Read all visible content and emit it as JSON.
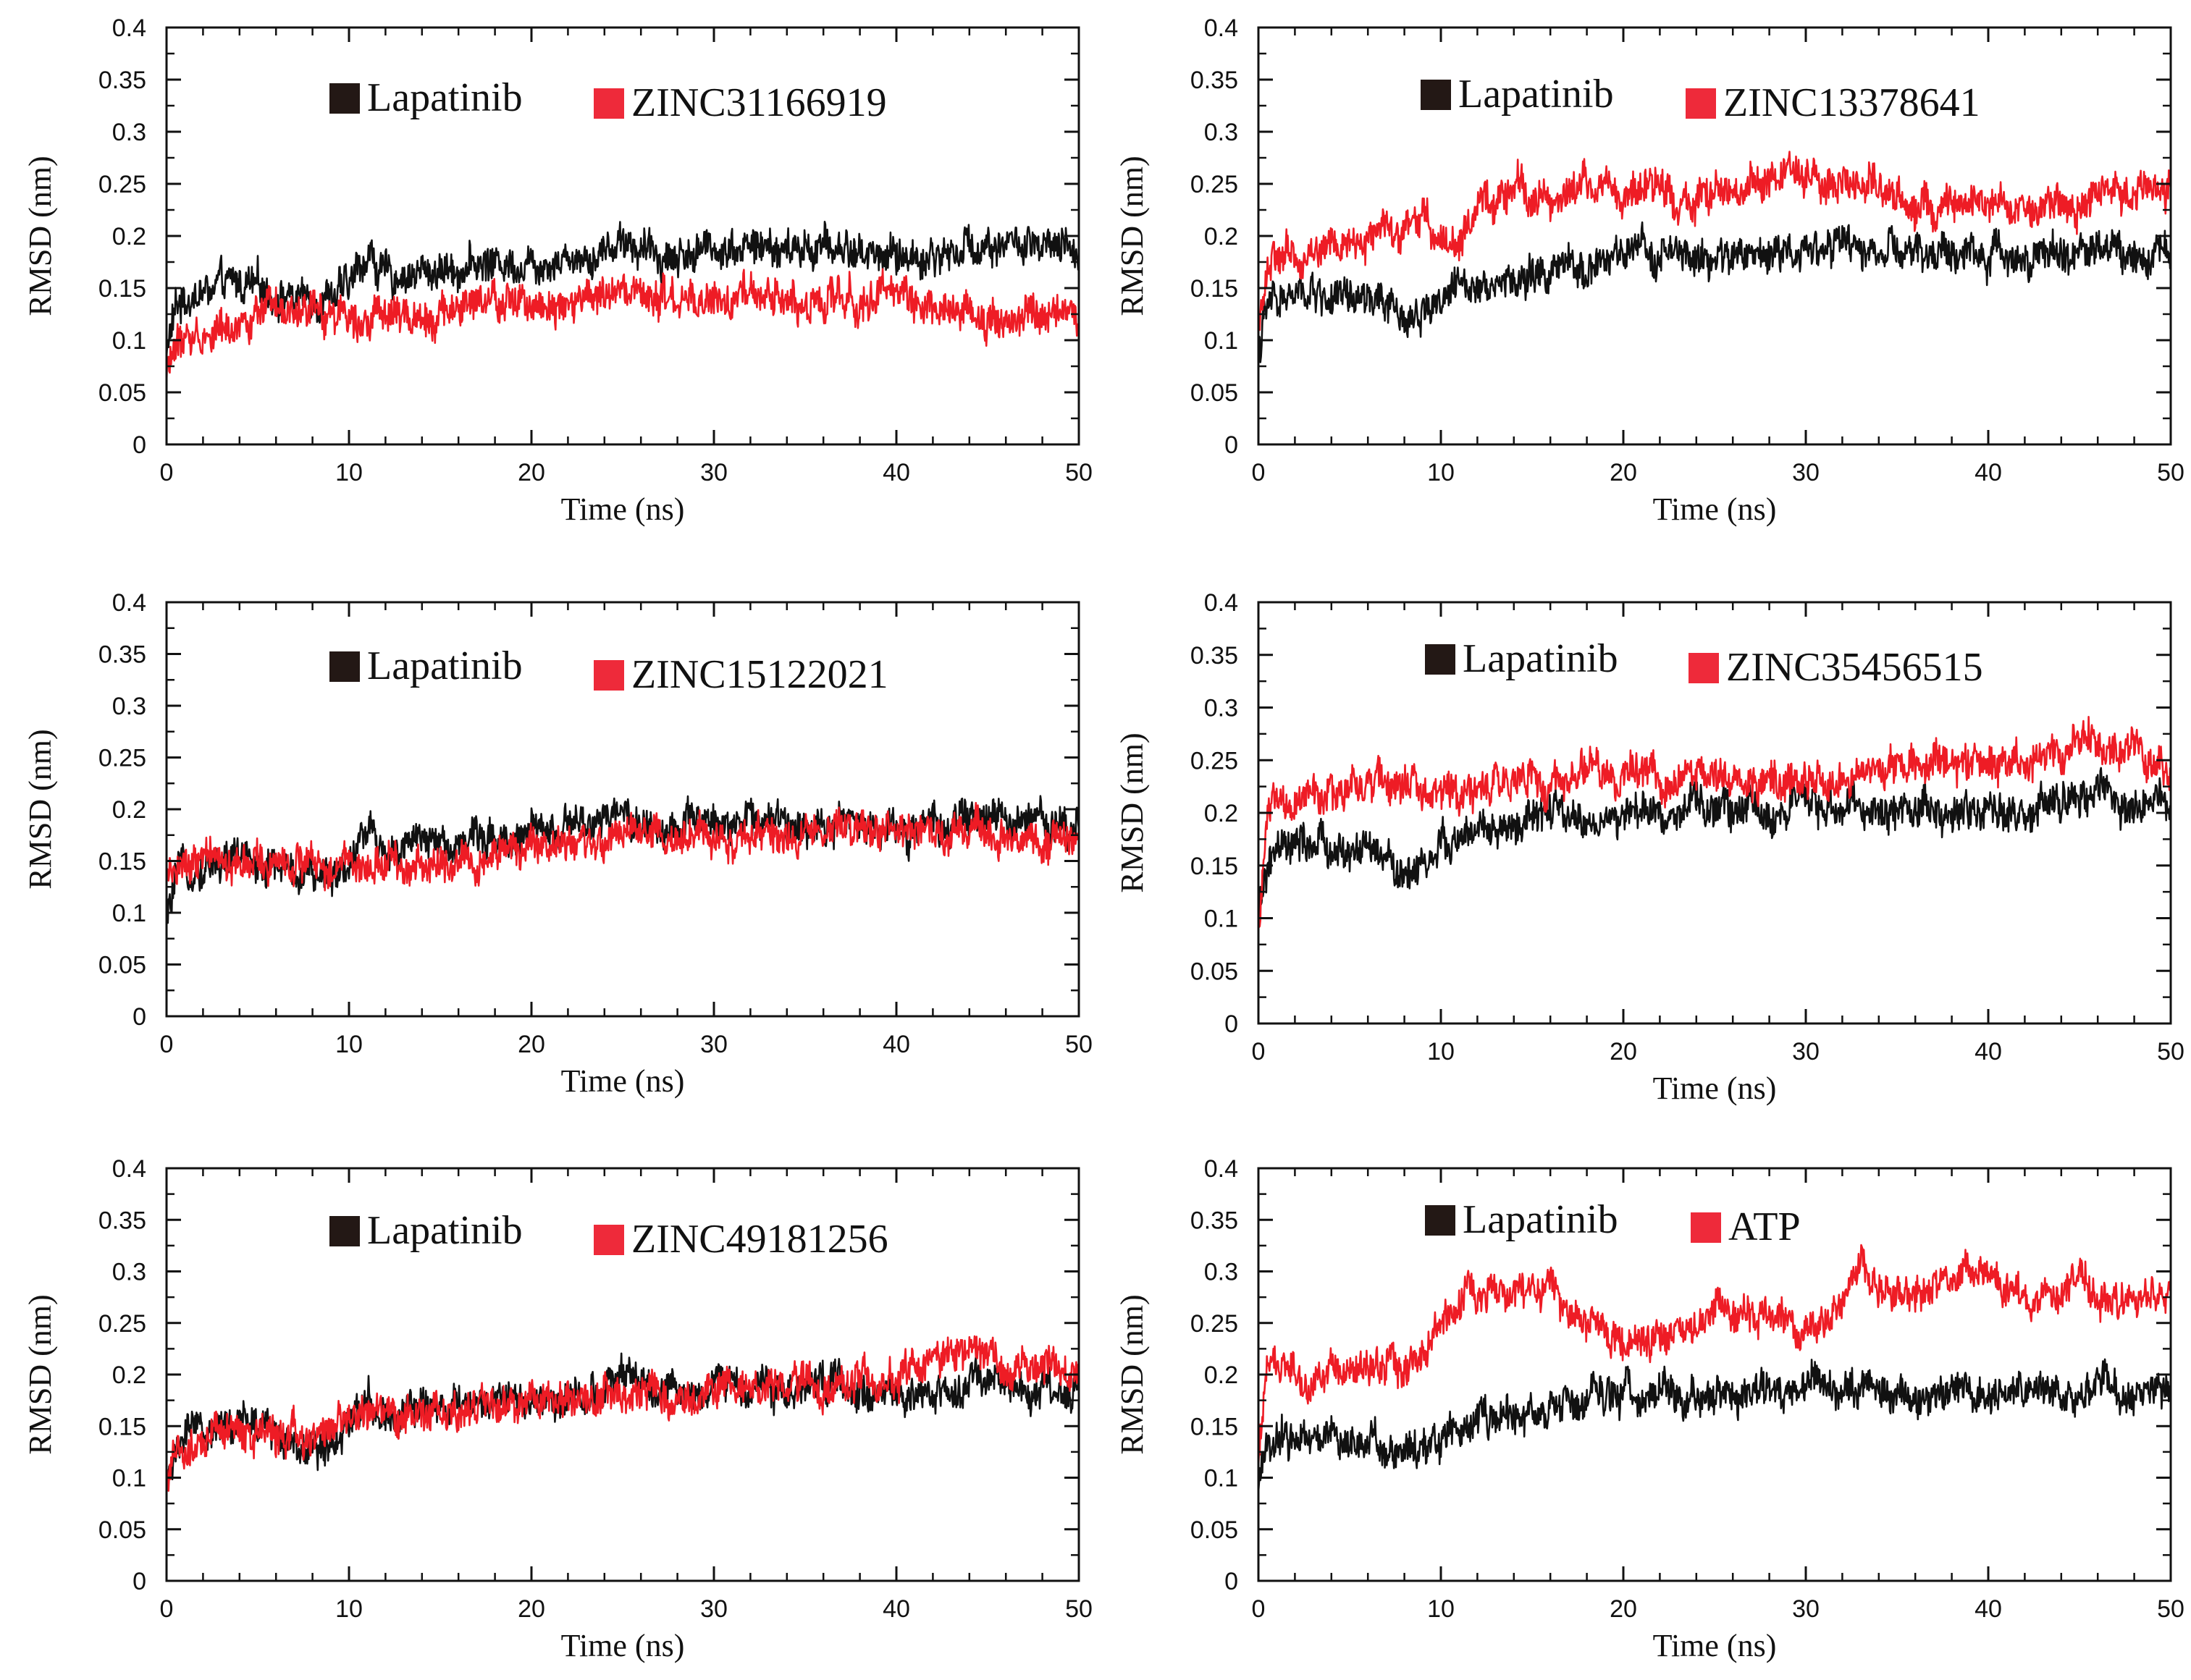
{
  "colors": {
    "reference": "#111111",
    "compound": "#ee1c25",
    "legend_reference_box": "#231815",
    "legend_compound_box": "#ee2a3a"
  },
  "chart_data": [
    {
      "type": "line",
      "title": "",
      "xlabel": "Time (ns)",
      "ylabel": "RMSD (nm)",
      "xlim": [
        0,
        50
      ],
      "ylim": [
        0,
        0.4
      ],
      "xticks": [
        "0",
        "10",
        "20",
        "30",
        "40",
        "50"
      ],
      "yticks": [
        "0",
        "0.05",
        "0.1",
        "0.15",
        "0.2",
        "0.25",
        "0.3",
        "0.35",
        "0.4"
      ],
      "legend": [
        "Lapatinib",
        "ZINC31166919"
      ],
      "series": [
        {
          "name": "Lapatinib",
          "x": [
            0,
            0.5,
            1,
            2,
            3,
            4,
            5,
            6,
            7,
            8,
            9,
            10,
            11,
            12,
            14,
            16,
            18,
            20,
            22,
            24,
            25,
            26,
            28,
            30,
            32,
            34,
            36,
            38,
            40,
            42,
            44,
            46,
            48,
            50
          ],
          "y": [
            0.09,
            0.13,
            0.14,
            0.145,
            0.15,
            0.155,
            0.15,
            0.145,
            0.14,
            0.14,
            0.145,
            0.15,
            0.185,
            0.16,
            0.165,
            0.17,
            0.175,
            0.175,
            0.18,
            0.185,
            0.2,
            0.185,
            0.18,
            0.19,
            0.19,
            0.185,
            0.19,
            0.185,
            0.18,
            0.18,
            0.19,
            0.195,
            0.185,
            0.185
          ]
        },
        {
          "name": "ZINC31166919",
          "x": [
            0,
            0.5,
            1,
            2,
            3,
            4,
            5,
            6,
            7,
            8,
            9,
            10,
            11,
            12,
            14,
            16,
            18,
            20,
            22,
            24,
            26,
            28,
            30,
            32,
            34,
            36,
            38,
            40,
            42,
            44,
            46,
            48,
            50
          ],
          "y": [
            0.07,
            0.095,
            0.1,
            0.105,
            0.11,
            0.12,
            0.125,
            0.125,
            0.12,
            0.125,
            0.125,
            0.13,
            0.125,
            0.12,
            0.125,
            0.13,
            0.135,
            0.135,
            0.14,
            0.14,
            0.14,
            0.135,
            0.135,
            0.14,
            0.14,
            0.135,
            0.14,
            0.145,
            0.135,
            0.125,
            0.12,
            0.12,
            0.125
          ]
        }
      ]
    },
    {
      "type": "line",
      "title": "",
      "xlabel": "Time (ns)",
      "ylabel": "RMSD (nm)",
      "xlim": [
        0,
        50
      ],
      "ylim": [
        0,
        0.4
      ],
      "xticks": [
        "0",
        "10",
        "20",
        "30",
        "40",
        "50"
      ],
      "yticks": [
        "0",
        "0.05",
        "0.1",
        "0.15",
        "0.2",
        "0.25",
        "0.3",
        "0.35",
        "0.4"
      ],
      "legend": [
        "Lapatinib",
        "ZINC13378641"
      ],
      "series": [
        {
          "name": "Lapatinib",
          "x": [
            0,
            0.5,
            1,
            2,
            3,
            4,
            5,
            6,
            7,
            8,
            9,
            10,
            11,
            12,
            14,
            16,
            18,
            20,
            22,
            24,
            26,
            28,
            30,
            32,
            34,
            36,
            38,
            40,
            42,
            44,
            46,
            48,
            50
          ],
          "y": [
            0.09,
            0.13,
            0.14,
            0.14,
            0.145,
            0.14,
            0.135,
            0.14,
            0.13,
            0.12,
            0.13,
            0.14,
            0.15,
            0.16,
            0.155,
            0.165,
            0.17,
            0.18,
            0.185,
            0.175,
            0.18,
            0.185,
            0.19,
            0.19,
            0.185,
            0.18,
            0.185,
            0.18,
            0.185,
            0.18,
            0.19,
            0.185,
            0.185
          ]
        },
        {
          "name": "ZINC13378641",
          "x": [
            0,
            0.5,
            1,
            2,
            3,
            4,
            5,
            6,
            7,
            8,
            9,
            10,
            11,
            12,
            13,
            14,
            16,
            18,
            20,
            22,
            24,
            26,
            28,
            29,
            30,
            32,
            34,
            36,
            38,
            40,
            42,
            44,
            46,
            48,
            50
          ],
          "y": [
            0.12,
            0.17,
            0.175,
            0.18,
            0.185,
            0.19,
            0.19,
            0.2,
            0.205,
            0.21,
            0.215,
            0.2,
            0.195,
            0.22,
            0.235,
            0.245,
            0.235,
            0.25,
            0.24,
            0.245,
            0.235,
            0.24,
            0.255,
            0.265,
            0.25,
            0.245,
            0.255,
            0.225,
            0.22,
            0.23,
            0.225,
            0.23,
            0.235,
            0.245,
            0.25
          ]
        }
      ]
    },
    {
      "type": "line",
      "title": "",
      "xlabel": "Time (ns)",
      "ylabel": "RMSD (nm)",
      "xlim": [
        0,
        50
      ],
      "ylim": [
        0,
        0.4
      ],
      "xticks": [
        "0",
        "10",
        "20",
        "30",
        "40",
        "50"
      ],
      "yticks": [
        "0",
        "0.05",
        "0.1",
        "0.15",
        "0.2",
        "0.25",
        "0.3",
        "0.35",
        "0.4"
      ],
      "legend": [
        "Lapatinib",
        "ZINC15122021"
      ],
      "series": [
        {
          "name": "Lapatinib",
          "x": [
            0,
            0.5,
            1,
            2,
            3,
            4,
            5,
            6,
            7,
            8,
            9,
            10,
            11,
            12,
            14,
            16,
            18,
            20,
            22,
            24,
            25,
            26,
            28,
            30,
            32,
            34,
            36,
            38,
            40,
            42,
            44,
            46,
            48,
            50
          ],
          "y": [
            0.09,
            0.13,
            0.14,
            0.145,
            0.15,
            0.155,
            0.15,
            0.145,
            0.14,
            0.13,
            0.14,
            0.15,
            0.185,
            0.16,
            0.165,
            0.17,
            0.175,
            0.175,
            0.18,
            0.185,
            0.2,
            0.185,
            0.18,
            0.19,
            0.19,
            0.185,
            0.19,
            0.185,
            0.18,
            0.18,
            0.19,
            0.19,
            0.185,
            0.19
          ]
        },
        {
          "name": "ZINC15122021",
          "x": [
            0,
            0.5,
            1,
            2,
            3,
            4,
            5,
            6,
            8,
            10,
            12,
            14,
            16,
            18,
            20,
            22,
            24,
            26,
            28,
            30,
            32,
            34,
            36,
            38,
            40,
            42,
            44,
            46,
            48,
            50
          ],
          "y": [
            0.13,
            0.14,
            0.145,
            0.15,
            0.15,
            0.145,
            0.15,
            0.145,
            0.145,
            0.145,
            0.15,
            0.145,
            0.15,
            0.155,
            0.16,
            0.165,
            0.17,
            0.175,
            0.17,
            0.17,
            0.17,
            0.175,
            0.18,
            0.18,
            0.18,
            0.175,
            0.175,
            0.175,
            0.17,
            0.165
          ]
        }
      ]
    },
    {
      "type": "line",
      "title": "",
      "xlabel": "Time (ns)",
      "ylabel": "RMSD (nm)",
      "xlim": [
        0,
        50
      ],
      "ylim": [
        0,
        0.4
      ],
      "xticks": [
        "0",
        "10",
        "20",
        "30",
        "40",
        "50"
      ],
      "yticks": [
        "0",
        "0.05",
        "0.1",
        "0.15",
        "0.2",
        "0.25",
        "0.3",
        "0.35",
        "0.4"
      ],
      "legend": [
        "Lapatinib",
        "ZINC35456515"
      ],
      "series": [
        {
          "name": "Lapatinib",
          "x": [
            0,
            0.5,
            1,
            2,
            3,
            4,
            5,
            6,
            7,
            8,
            9,
            10,
            11,
            12,
            14,
            16,
            18,
            20,
            22,
            24,
            26,
            28,
            30,
            32,
            34,
            36,
            38,
            40,
            42,
            44,
            46,
            48,
            50
          ],
          "y": [
            0.1,
            0.15,
            0.16,
            0.165,
            0.17,
            0.165,
            0.16,
            0.165,
            0.155,
            0.14,
            0.155,
            0.165,
            0.175,
            0.18,
            0.185,
            0.2,
            0.19,
            0.195,
            0.2,
            0.205,
            0.205,
            0.2,
            0.205,
            0.205,
            0.2,
            0.205,
            0.2,
            0.205,
            0.2,
            0.21,
            0.215,
            0.205,
            0.205
          ]
        },
        {
          "name": "ZINC35456515",
          "x": [
            0,
            0.5,
            1,
            2,
            3,
            4,
            5,
            6,
            8,
            10,
            12,
            14,
            16,
            18,
            20,
            22,
            24,
            26,
            28,
            30,
            32,
            34,
            36,
            38,
            40,
            42,
            44,
            46,
            48,
            50
          ],
          "y": [
            0.09,
            0.2,
            0.21,
            0.21,
            0.215,
            0.215,
            0.22,
            0.23,
            0.225,
            0.22,
            0.225,
            0.23,
            0.235,
            0.235,
            0.24,
            0.235,
            0.235,
            0.23,
            0.235,
            0.23,
            0.235,
            0.24,
            0.25,
            0.245,
            0.245,
            0.255,
            0.26,
            0.27,
            0.26,
            0.24
          ]
        }
      ]
    },
    {
      "type": "line",
      "title": "",
      "xlabel": "Time (ns)",
      "ylabel": "RMSD (nm)",
      "xlim": [
        0,
        50
      ],
      "ylim": [
        0,
        0.4
      ],
      "xticks": [
        "0",
        "10",
        "20",
        "30",
        "40",
        "50"
      ],
      "yticks": [
        "0",
        "0.05",
        "0.1",
        "0.15",
        "0.2",
        "0.25",
        "0.3",
        "0.35",
        "0.4"
      ],
      "legend": [
        "Lapatinib",
        "ZINC49181256"
      ],
      "series": [
        {
          "name": "Lapatinib",
          "x": [
            0,
            0.5,
            1,
            2,
            3,
            4,
            5,
            6,
            7,
            8,
            9,
            10,
            11,
            12,
            14,
            16,
            18,
            20,
            22,
            24,
            25,
            26,
            28,
            30,
            32,
            34,
            36,
            38,
            40,
            42,
            44,
            46,
            48,
            50
          ],
          "y": [
            0.09,
            0.13,
            0.14,
            0.145,
            0.15,
            0.155,
            0.15,
            0.145,
            0.14,
            0.13,
            0.14,
            0.15,
            0.185,
            0.16,
            0.165,
            0.17,
            0.175,
            0.175,
            0.18,
            0.185,
            0.2,
            0.185,
            0.18,
            0.19,
            0.19,
            0.185,
            0.19,
            0.185,
            0.18,
            0.18,
            0.19,
            0.185,
            0.185,
            0.185
          ]
        },
        {
          "name": "ZINC49181256",
          "x": [
            0,
            0.5,
            1,
            2,
            3,
            4,
            5,
            6,
            8,
            10,
            12,
            14,
            16,
            18,
            20,
            22,
            24,
            26,
            28,
            30,
            32,
            34,
            36,
            38,
            40,
            42,
            44,
            46,
            48,
            50
          ],
          "y": [
            0.09,
            0.12,
            0.125,
            0.135,
            0.14,
            0.145,
            0.145,
            0.145,
            0.145,
            0.15,
            0.165,
            0.165,
            0.165,
            0.17,
            0.17,
            0.175,
            0.18,
            0.175,
            0.18,
            0.185,
            0.185,
            0.19,
            0.185,
            0.195,
            0.2,
            0.215,
            0.22,
            0.215,
            0.21,
            0.205
          ]
        }
      ]
    },
    {
      "type": "line",
      "title": "",
      "xlabel": "Time (ns)",
      "ylabel": "RMSD (nm)",
      "xlim": [
        0,
        50
      ],
      "ylim": [
        0,
        0.4
      ],
      "xticks": [
        "0",
        "10",
        "20",
        "30",
        "40",
        "50"
      ],
      "yticks": [
        "0",
        "0.05",
        "0.1",
        "0.15",
        "0.2",
        "0.25",
        "0.3",
        "0.35",
        "0.4"
      ],
      "legend": [
        "Lapatinib",
        "ATP"
      ],
      "series": [
        {
          "name": "Lapatinib",
          "x": [
            0,
            0.5,
            1,
            2,
            3,
            4,
            5,
            6,
            7,
            8,
            9,
            10,
            11,
            12,
            14,
            16,
            18,
            20,
            22,
            24,
            26,
            28,
            30,
            32,
            34,
            36,
            38,
            40,
            42,
            44,
            46,
            48,
            50
          ],
          "y": [
            0.09,
            0.13,
            0.14,
            0.14,
            0.145,
            0.14,
            0.135,
            0.14,
            0.13,
            0.12,
            0.13,
            0.14,
            0.15,
            0.16,
            0.155,
            0.165,
            0.17,
            0.18,
            0.185,
            0.175,
            0.18,
            0.185,
            0.19,
            0.19,
            0.185,
            0.18,
            0.185,
            0.18,
            0.185,
            0.18,
            0.19,
            0.185,
            0.185
          ]
        },
        {
          "name": "ATP",
          "x": [
            0,
            0.5,
            1,
            2,
            3,
            4,
            5,
            6,
            7,
            8,
            9,
            10,
            11,
            12,
            14,
            16,
            18,
            20,
            22,
            24,
            25,
            26,
            28,
            30,
            32,
            33,
            34,
            36,
            38,
            39,
            40,
            42,
            44,
            45,
            46,
            48,
            50
          ],
          "y": [
            0.12,
            0.2,
            0.21,
            0.205,
            0.2,
            0.205,
            0.2,
            0.21,
            0.215,
            0.205,
            0.22,
            0.25,
            0.27,
            0.275,
            0.28,
            0.285,
            0.255,
            0.24,
            0.235,
            0.25,
            0.27,
            0.255,
            0.26,
            0.25,
            0.27,
            0.31,
            0.275,
            0.275,
            0.29,
            0.3,
            0.29,
            0.275,
            0.28,
            0.3,
            0.275,
            0.27,
            0.285
          ]
        }
      ]
    }
  ]
}
